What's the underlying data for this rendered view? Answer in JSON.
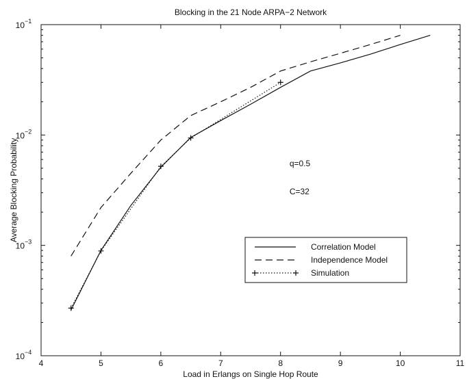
{
  "chart_data": {
    "type": "line",
    "title": "Blocking in the 21 Node ARPA−2 Network",
    "xlabel": "Load in Erlangs on Single Hop Route",
    "ylabel": "Average Blocking Probability",
    "xlim": [
      4,
      11
    ],
    "ylim": [
      0.0001,
      0.1
    ],
    "yscale": "log",
    "grid": false,
    "x_ticks": [
      4,
      5,
      6,
      7,
      8,
      9,
      10,
      11
    ],
    "y_ticks": [
      {
        "value": 0.0001,
        "base": "10",
        "exp": "−4"
      },
      {
        "value": 0.001,
        "base": "10",
        "exp": "−3"
      },
      {
        "value": 0.01,
        "base": "10",
        "exp": "−2"
      },
      {
        "value": 0.1,
        "base": "10",
        "exp": "−1"
      }
    ],
    "legend_position": "lower-right",
    "series": [
      {
        "name": "Correlation Model",
        "style": "solid",
        "marker": "none",
        "x": [
          4.5,
          5.0,
          5.5,
          6.0,
          6.5,
          7.0,
          7.5,
          8.0,
          8.5,
          9.0,
          9.5,
          10.0,
          10.5
        ],
        "y": [
          0.00026,
          0.0009,
          0.0023,
          0.0051,
          0.0095,
          0.0135,
          0.019,
          0.027,
          0.038,
          0.045,
          0.054,
          0.066,
          0.08
        ]
      },
      {
        "name": "Independence Model",
        "style": "dashed",
        "marker": "none",
        "x": [
          4.5,
          5.0,
          5.5,
          6.0,
          6.5,
          7.0,
          7.5,
          8.0,
          8.5,
          9.0,
          9.5,
          10.0
        ],
        "y": [
          0.0008,
          0.0022,
          0.0045,
          0.009,
          0.015,
          0.02,
          0.027,
          0.038,
          0.046,
          0.055,
          0.066,
          0.08
        ]
      },
      {
        "name": "Simulation",
        "style": "dotted",
        "marker": "plus",
        "x": [
          4.5,
          5.0,
          6.0,
          6.5,
          8.0
        ],
        "y": [
          0.00027,
          0.00089,
          0.0052,
          0.0094,
          0.03
        ]
      }
    ],
    "annotations": [
      "q=0.5",
      "C=32"
    ]
  }
}
